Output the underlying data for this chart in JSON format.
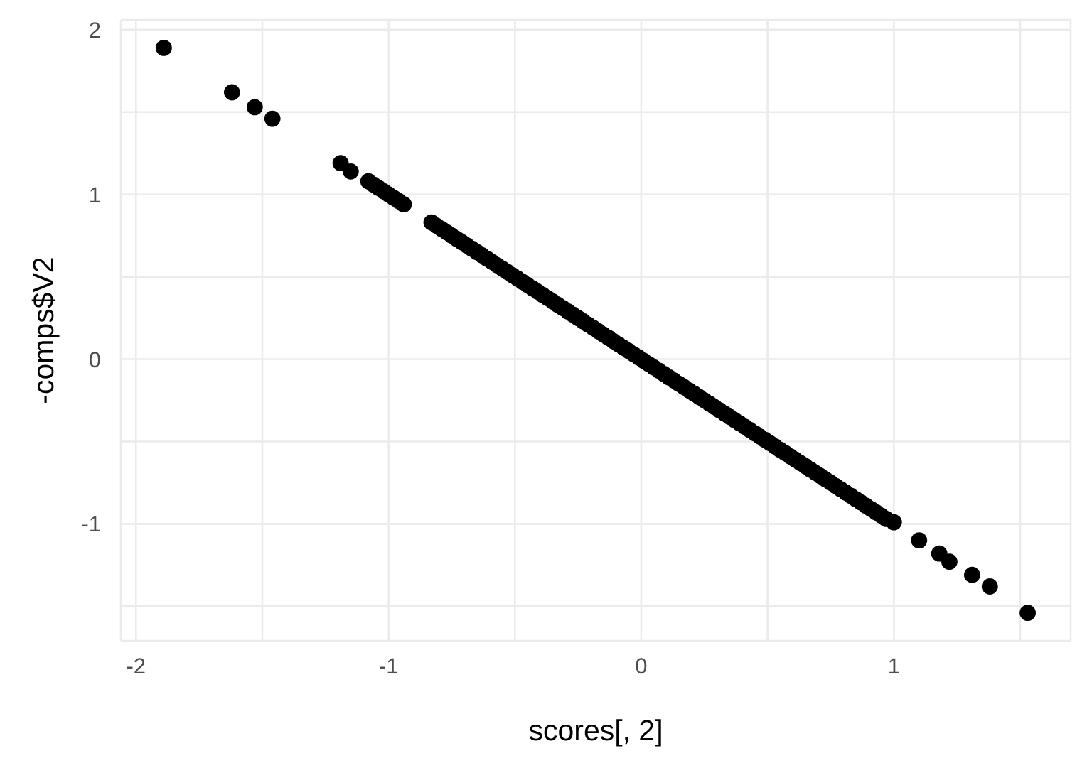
{
  "chart_data": {
    "type": "scatter",
    "xlabel": "scores[, 2]",
    "ylabel": "-comps$V2",
    "x": [
      -1.89,
      -1.62,
      -1.53,
      -1.46,
      -1.19,
      -1.15,
      -1.08,
      -1.06,
      -1.04,
      -1.02,
      -1.0,
      -0.98,
      -0.96,
      -0.94,
      -0.83,
      -0.81,
      -0.79,
      -0.77,
      -0.75,
      -0.73,
      -0.71,
      -0.69,
      -0.67,
      -0.65,
      -0.63,
      -0.61,
      -0.59,
      -0.57,
      -0.55,
      -0.53,
      -0.51,
      -0.49,
      -0.47,
      -0.45,
      -0.43,
      -0.41,
      -0.39,
      -0.37,
      -0.35,
      -0.33,
      -0.31,
      -0.29,
      -0.27,
      -0.25,
      -0.23,
      -0.21,
      -0.19,
      -0.17,
      -0.15,
      -0.13,
      -0.11,
      -0.09,
      -0.07,
      -0.05,
      -0.03,
      -0.01,
      0.01,
      0.03,
      0.05,
      0.07,
      0.09,
      0.11,
      0.13,
      0.15,
      0.17,
      0.19,
      0.21,
      0.23,
      0.25,
      0.27,
      0.29,
      0.31,
      0.33,
      0.35,
      0.37,
      0.39,
      0.41,
      0.43,
      0.45,
      0.47,
      0.49,
      0.51,
      0.53,
      0.55,
      0.57,
      0.59,
      0.61,
      0.63,
      0.65,
      0.67,
      0.69,
      0.71,
      0.73,
      0.75,
      0.77,
      0.79,
      0.81,
      0.83,
      0.85,
      0.87,
      0.89,
      0.91,
      0.93,
      0.95,
      0.97,
      1.0,
      1.1,
      1.18,
      1.22,
      1.31,
      1.38,
      1.53
    ],
    "values": [
      1.89,
      1.62,
      1.53,
      1.46,
      1.19,
      1.14,
      1.08,
      1.06,
      1.04,
      1.02,
      1.0,
      0.98,
      0.96,
      0.94,
      0.83,
      0.81,
      0.79,
      0.77,
      0.75,
      0.73,
      0.71,
      0.69,
      0.67,
      0.65,
      0.63,
      0.61,
      0.59,
      0.57,
      0.55,
      0.53,
      0.51,
      0.49,
      0.47,
      0.45,
      0.43,
      0.41,
      0.39,
      0.37,
      0.35,
      0.33,
      0.31,
      0.29,
      0.27,
      0.25,
      0.23,
      0.21,
      0.19,
      0.17,
      0.15,
      0.13,
      0.11,
      0.09,
      0.07,
      0.05,
      0.03,
      0.01,
      -0.01,
      -0.03,
      -0.05,
      -0.07,
      -0.09,
      -0.11,
      -0.13,
      -0.15,
      -0.17,
      -0.19,
      -0.21,
      -0.23,
      -0.25,
      -0.27,
      -0.29,
      -0.31,
      -0.33,
      -0.35,
      -0.37,
      -0.39,
      -0.41,
      -0.43,
      -0.45,
      -0.47,
      -0.49,
      -0.51,
      -0.53,
      -0.55,
      -0.57,
      -0.59,
      -0.61,
      -0.63,
      -0.65,
      -0.67,
      -0.69,
      -0.71,
      -0.73,
      -0.75,
      -0.77,
      -0.79,
      -0.81,
      -0.83,
      -0.85,
      -0.87,
      -0.89,
      -0.91,
      -0.93,
      -0.95,
      -0.97,
      -0.99,
      -1.1,
      -1.18,
      -1.23,
      -1.31,
      -1.38,
      -1.54
    ],
    "color": "#000000",
    "marker": "circle",
    "xlim": [
      -2.06,
      1.7
    ],
    "ylim": [
      -1.71,
      2.06
    ],
    "xticks": [
      -2,
      {
        "value": -1.5,
        "label": null
      },
      -1,
      {
        "value": -0.5,
        "label": null
      },
      0,
      {
        "value": 0.5,
        "label": null
      },
      1,
      {
        "value": 1.5,
        "label": null
      }
    ],
    "yticks": [
      {
        "value": -1.5,
        "label": null
      },
      -1,
      {
        "value": -0.5,
        "label": null
      },
      0,
      {
        "value": 0.5,
        "label": null
      },
      1,
      {
        "value": 1.5,
        "label": null
      },
      2
    ],
    "grid": true
  }
}
